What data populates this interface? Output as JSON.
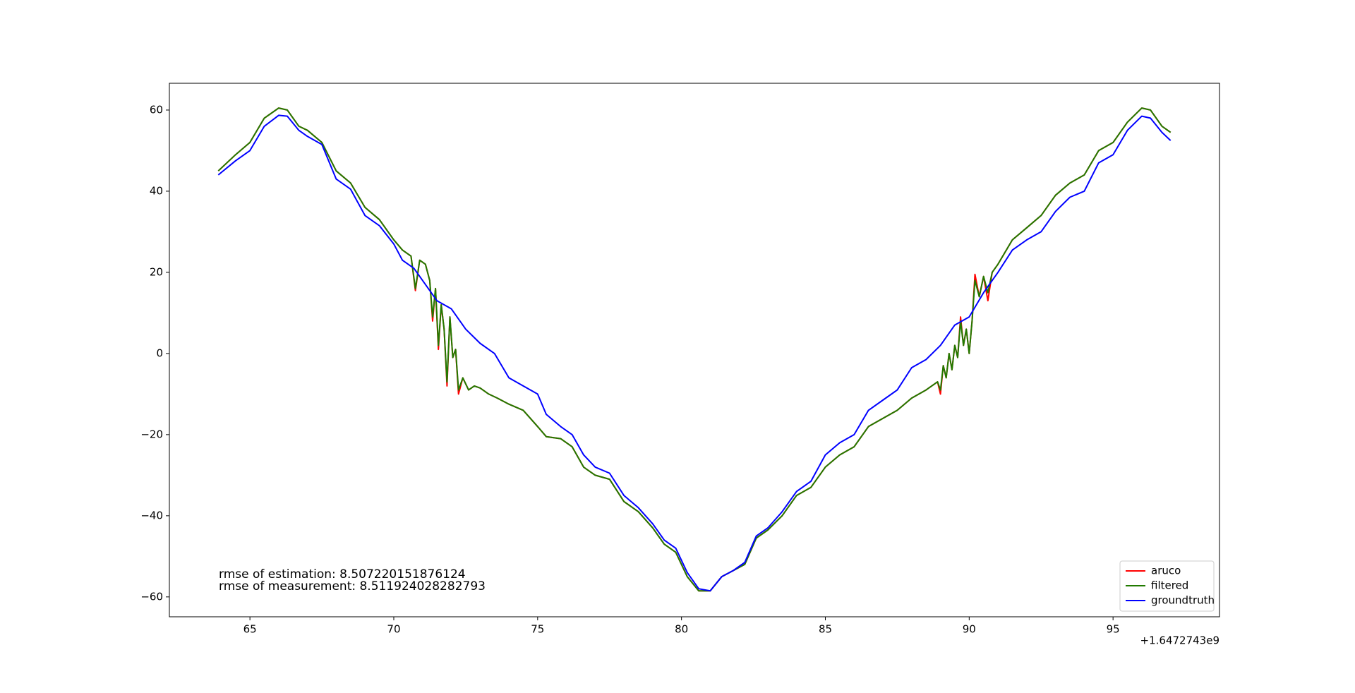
{
  "chart_data": {
    "type": "line",
    "annotations": [
      "rmse of estimation: 8.507220151876124",
      "rmse of measurement: 8.511924028282793"
    ],
    "x_offset_label": "+1.6472743e9",
    "xlim": [
      62.2,
      98.7
    ],
    "ylim": [
      -64.9,
      66.6
    ],
    "xticks": [
      65,
      70,
      75,
      80,
      85,
      90,
      95
    ],
    "yticks": [
      {
        "value": -60,
        "label": "−60"
      },
      {
        "value": -40,
        "label": "−40"
      },
      {
        "value": -20,
        "label": "−20"
      },
      0,
      20,
      40,
      60
    ],
    "legend": "lower right",
    "series": [
      {
        "name": "aruco",
        "color": "#ff0000",
        "x": [
          63.9,
          64.5,
          65.0,
          65.5,
          66.0,
          66.3,
          66.7,
          67.0,
          67.5,
          68.0,
          68.5,
          69.0,
          69.5,
          70.0,
          70.3,
          70.6,
          70.75,
          70.9,
          71.1,
          71.25,
          71.35,
          71.45,
          71.55,
          71.65,
          71.75,
          71.85,
          71.95,
          72.05,
          72.15,
          72.25,
          72.4,
          72.6,
          72.8,
          73.0,
          73.3,
          73.6,
          74.0,
          74.5,
          75.0,
          75.3,
          75.8,
          76.2,
          76.6,
          77.0,
          77.5,
          78.0,
          78.5,
          79.0,
          79.4,
          79.8,
          80.2,
          80.6,
          81.0,
          81.4,
          81.8,
          82.2,
          82.6,
          83.0,
          83.5,
          84.0,
          84.5,
          85.0,
          85.5,
          86.0,
          86.5,
          87.0,
          87.5,
          88.0,
          88.5,
          88.9,
          89.0,
          89.1,
          89.2,
          89.3,
          89.4,
          89.5,
          89.6,
          89.7,
          89.8,
          89.9,
          90.0,
          90.1,
          90.2,
          90.35,
          90.5,
          90.65,
          90.8,
          91.0,
          91.5,
          92.0,
          92.5,
          93.0,
          93.5,
          94.0,
          94.5,
          95.0,
          95.5,
          96.0,
          96.3,
          96.7,
          97.0
        ],
        "values": [
          45,
          49,
          52,
          58,
          60.5,
          60,
          56,
          55,
          52,
          45,
          42,
          36,
          33,
          28,
          25.5,
          24,
          15.5,
          23,
          22,
          18,
          8,
          16,
          1,
          12,
          6,
          -8,
          9,
          -1,
          1,
          -10,
          -6,
          -9,
          -8,
          -8.5,
          -10,
          -11,
          -12.5,
          -14,
          -18,
          -20.5,
          -21,
          -23,
          -28,
          -30,
          -31,
          -36.5,
          -39,
          -43,
          -47,
          -49,
          -55,
          -58.5,
          -58.5,
          -55,
          -53.5,
          -52,
          -45.5,
          -43.5,
          -40,
          -35,
          -33,
          -28,
          -25,
          -23,
          -18,
          -16,
          -14,
          -11,
          -9,
          -7,
          -10,
          -3,
          -6,
          0,
          -4,
          2,
          -1,
          9,
          2,
          6,
          0,
          8,
          19.5,
          14,
          19,
          13,
          20,
          22,
          28,
          31,
          34,
          39,
          42,
          44,
          50,
          52,
          57,
          60.5,
          60,
          56,
          54.5
        ]
      },
      {
        "name": "filtered",
        "color": "#217a00",
        "x": [
          63.9,
          64.5,
          65.0,
          65.5,
          66.0,
          66.3,
          66.7,
          67.0,
          67.5,
          68.0,
          68.5,
          69.0,
          69.5,
          70.0,
          70.3,
          70.6,
          70.75,
          70.9,
          71.1,
          71.25,
          71.35,
          71.45,
          71.55,
          71.65,
          71.75,
          71.85,
          71.95,
          72.05,
          72.15,
          72.25,
          72.4,
          72.6,
          72.8,
          73.0,
          73.3,
          73.6,
          74.0,
          74.5,
          75.0,
          75.3,
          75.8,
          76.2,
          76.6,
          77.0,
          77.5,
          78.0,
          78.5,
          79.0,
          79.4,
          79.8,
          80.2,
          80.6,
          81.0,
          81.4,
          81.8,
          82.2,
          82.6,
          83.0,
          83.5,
          84.0,
          84.5,
          85.0,
          85.5,
          86.0,
          86.5,
          87.0,
          87.5,
          88.0,
          88.5,
          88.9,
          89.0,
          89.1,
          89.2,
          89.3,
          89.4,
          89.5,
          89.6,
          89.7,
          89.8,
          89.9,
          90.0,
          90.1,
          90.2,
          90.35,
          90.5,
          90.65,
          90.8,
          91.0,
          91.5,
          92.0,
          92.5,
          93.0,
          93.5,
          94.0,
          94.5,
          95.0,
          95.5,
          96.0,
          96.3,
          96.7,
          97.0
        ],
        "values": [
          45,
          49,
          52,
          58,
          60.5,
          60,
          56,
          55,
          52,
          45,
          42,
          36,
          33,
          28,
          25.5,
          24,
          16,
          23,
          22,
          18,
          9,
          16,
          2,
          12,
          6,
          -7,
          9,
          -1,
          1,
          -9,
          -6,
          -9,
          -8,
          -8.5,
          -10,
          -11,
          -12.5,
          -14,
          -18,
          -20.5,
          -21,
          -23,
          -28,
          -30,
          -31,
          -36.5,
          -39,
          -43,
          -47,
          -49,
          -55,
          -58.5,
          -58.5,
          -55,
          -53.5,
          -52,
          -45.5,
          -43.5,
          -40,
          -35,
          -33,
          -28,
          -25,
          -23,
          -18,
          -16,
          -14,
          -11,
          -9,
          -7,
          -9,
          -3,
          -6,
          0,
          -4,
          2,
          -1,
          8,
          2,
          6,
          0,
          8,
          18,
          14,
          19,
          15,
          20,
          22,
          28,
          31,
          34,
          39,
          42,
          44,
          50,
          52,
          57,
          60.5,
          60,
          56,
          54.5
        ]
      },
      {
        "name": "groundtruth",
        "color": "#0000ff",
        "x": [
          63.9,
          64.5,
          65.0,
          65.5,
          66.0,
          66.3,
          66.7,
          67.0,
          67.5,
          68.0,
          68.5,
          69.0,
          69.5,
          70.0,
          70.3,
          70.7,
          71.0,
          71.5,
          72.0,
          72.5,
          73.0,
          73.5,
          74.0,
          74.5,
          75.0,
          75.3,
          75.8,
          76.2,
          76.6,
          77.0,
          77.5,
          78.0,
          78.5,
          79.0,
          79.4,
          79.8,
          80.2,
          80.6,
          81.0,
          81.4,
          81.8,
          82.2,
          82.6,
          83.0,
          83.5,
          84.0,
          84.5,
          85.0,
          85.5,
          86.0,
          86.5,
          87.0,
          87.5,
          88.0,
          88.5,
          89.0,
          89.5,
          90.0,
          90.5,
          91.0,
          91.5,
          92.0,
          92.5,
          93.0,
          93.5,
          94.0,
          94.5,
          95.0,
          95.5,
          96.0,
          96.3,
          96.7,
          97.0
        ],
        "values": [
          44,
          47.5,
          50,
          56,
          58.7,
          58.5,
          55,
          53.5,
          51.5,
          43,
          40.5,
          34,
          31.5,
          27,
          23,
          21,
          18,
          13,
          11,
          6,
          2.5,
          0,
          -6,
          -8,
          -10,
          -15,
          -18,
          -20,
          -25,
          -28,
          -29.5,
          -35,
          -38,
          -42,
          -46,
          -48,
          -54,
          -58,
          -58.5,
          -55,
          -53.5,
          -51.5,
          -45,
          -43,
          -39,
          -34,
          -31.5,
          -25,
          -22,
          -20,
          -14,
          -11.5,
          -9,
          -3.5,
          -1.5,
          2,
          7,
          9,
          15,
          20,
          25.5,
          28,
          30,
          35,
          38.5,
          40,
          47,
          49,
          55,
          58.5,
          58,
          54.5,
          52.5
        ]
      }
    ]
  }
}
